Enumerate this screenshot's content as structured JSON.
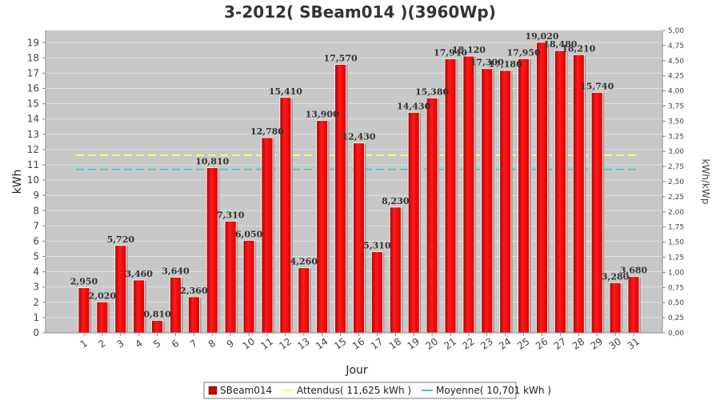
{
  "chart_data": {
    "type": "bar",
    "title": "3-2012( SBeam014 )(3960Wp)",
    "xlabel": "Jour",
    "ylabel": "kWh",
    "y2label": "kWh/kWp",
    "categories": [
      "1",
      "2",
      "3",
      "4",
      "5",
      "6",
      "7",
      "8",
      "9",
      "10",
      "11",
      "12",
      "13",
      "14",
      "15",
      "16",
      "17",
      "18",
      "19",
      "20",
      "21",
      "22",
      "23",
      "24",
      "25",
      "26",
      "27",
      "28",
      "29",
      "30",
      "31"
    ],
    "series": [
      {
        "name": "SBeam014",
        "values": [
          2.95,
          2.02,
          5.72,
          3.46,
          0.81,
          3.64,
          2.36,
          10.81,
          7.31,
          6.05,
          12.78,
          15.41,
          4.26,
          13.9,
          17.57,
          12.43,
          5.31,
          8.23,
          14.43,
          15.38,
          17.94,
          18.12,
          17.3,
          17.18,
          17.95,
          19.02,
          18.48,
          18.21,
          15.74,
          3.28,
          3.68
        ],
        "color": "#ff0000"
      }
    ],
    "value_labels": [
      "2,950",
      "2,020",
      "5,720",
      "3,460",
      "0,810",
      "3,640",
      "2,360",
      "10,810",
      "7,310",
      "6,050",
      "12,780",
      "15,410",
      "4,260",
      "13,900",
      "17,570",
      "12,430",
      "5,310",
      "8,230",
      "14,430",
      "15,380",
      "17,940",
      "18,120",
      "17,300",
      "17,180",
      "17,950",
      "19,020",
      "18,480",
      "18,210",
      "15,740",
      "3,280",
      "3,680"
    ],
    "lines": [
      {
        "name": "Attendus",
        "value": 11.625,
        "color": "#ffff66"
      },
      {
        "name": "Moyenne",
        "value": 10.701,
        "color": "#33cccc"
      }
    ],
    "ylim": [
      0,
      19.8
    ],
    "y_ticks": [
      "0",
      "1",
      "2",
      "3",
      "4",
      "5",
      "6",
      "7",
      "8",
      "9",
      "10",
      "11",
      "12",
      "13",
      "14",
      "15",
      "16",
      "17",
      "18",
      "19"
    ],
    "y2lim": [
      0,
      5.0
    ],
    "y2_ticks": [
      "0,00",
      "0,25",
      "0,50",
      "0,75",
      "1,00",
      "1,25",
      "1,50",
      "1,75",
      "2,00",
      "2,25",
      "2,50",
      "2,75",
      "3,00",
      "3,25",
      "3,50",
      "3,75",
      "4,00",
      "4,25",
      "4,50",
      "4,75",
      "5,00"
    ],
    "grid": true,
    "legend": {
      "position": "bottom",
      "items": [
        {
          "label": "SBeam014",
          "color": "#cc0000",
          "kind": "box"
        },
        {
          "label": "Attendus( 11,625 kWh )",
          "color": "#ffff66",
          "kind": "line"
        },
        {
          "label": "Moyenne( 10,701 kWh )",
          "color": "#33cccc",
          "kind": "line"
        }
      ]
    },
    "plot_background": "#c8c8c8"
  }
}
